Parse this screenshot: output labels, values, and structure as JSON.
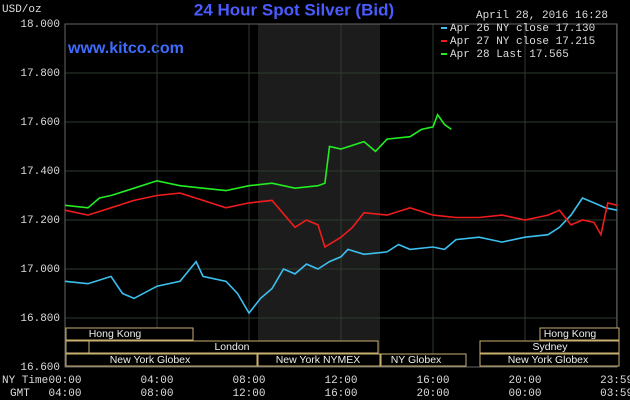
{
  "chart_data": {
    "type": "line",
    "title": "24 Hour Spot Silver (Bid)",
    "y_unit": "USD/oz",
    "timestamp": "April 28, 2016 16:28",
    "watermark": "www.kitco.com",
    "xlabel": "NY Time",
    "x2label": "GMT",
    "xlim": [
      0,
      24
    ],
    "xticks": [
      {
        "value": 0,
        "label": "00:00"
      },
      {
        "value": 4,
        "label": "04:00"
      },
      {
        "value": 8,
        "label": "08:00"
      },
      {
        "value": 12,
        "label": "12:00"
      },
      {
        "value": 16,
        "label": "16:00"
      },
      {
        "value": 20,
        "label": "20:00"
      },
      {
        "value": 23.983,
        "label": "23:59"
      }
    ],
    "x2tick_labels": [
      "04:00",
      "08:00",
      "12:00",
      "16:00",
      "20:00",
      "00:00",
      "03:59"
    ],
    "ylim": [
      16.6,
      18.0
    ],
    "yticks": [
      {
        "value": 16.6,
        "label": "16.600"
      },
      {
        "value": 16.8,
        "label": "16.800"
      },
      {
        "value": 17.0,
        "label": "17.000"
      },
      {
        "value": 17.2,
        "label": "17.200"
      },
      {
        "value": 17.4,
        "label": "17.400"
      },
      {
        "value": 17.6,
        "label": "17.600"
      },
      {
        "value": 17.8,
        "label": "17.800"
      },
      {
        "value": 18.0,
        "label": "18.000"
      }
    ],
    "grid": true,
    "sessions": [
      "Hong Kong",
      "Hong Kong",
      "London",
      "Sydney",
      "New York Globex",
      "New York NYMEX",
      "NY Globex",
      "New York Globex"
    ],
    "series": [
      {
        "name": "Apr 26 NY close 17.130",
        "color": "#3cc0f0",
        "x": [
          0,
          1,
          2,
          2.5,
          3,
          4,
          5,
          5.7,
          6,
          7,
          7.5,
          8,
          8.5,
          9,
          9.5,
          10,
          10.5,
          11,
          11.5,
          12,
          12.3,
          13,
          14,
          14.5,
          15,
          16,
          16.5,
          17,
          18,
          18.5,
          19,
          20,
          21,
          21.5,
          22,
          22.5,
          23,
          23.5,
          24
        ],
        "values": [
          16.95,
          16.94,
          16.97,
          16.9,
          16.88,
          16.93,
          16.95,
          17.03,
          16.97,
          16.95,
          16.9,
          16.82,
          16.88,
          16.92,
          17.0,
          16.98,
          17.02,
          17.0,
          17.03,
          17.05,
          17.08,
          17.06,
          17.07,
          17.1,
          17.08,
          17.09,
          17.08,
          17.12,
          17.13,
          17.12,
          17.11,
          17.13,
          17.14,
          17.17,
          17.22,
          17.29,
          17.27,
          17.25,
          17.24
        ]
      },
      {
        "name": "Apr 27 NY close 17.215",
        "color": "#ee1c1c",
        "x": [
          0,
          1,
          2,
          3,
          4,
          5,
          6,
          7,
          8,
          9,
          10,
          10.5,
          11,
          11.3,
          12,
          12.5,
          13,
          14,
          15,
          16,
          17,
          18,
          19,
          20,
          21,
          21.5,
          22,
          22.5,
          23,
          23.3,
          23.6,
          24
        ],
        "values": [
          17.24,
          17.22,
          17.25,
          17.28,
          17.3,
          17.31,
          17.28,
          17.25,
          17.27,
          17.28,
          17.17,
          17.2,
          17.18,
          17.09,
          17.13,
          17.17,
          17.23,
          17.22,
          17.25,
          17.22,
          17.21,
          17.21,
          17.22,
          17.2,
          17.22,
          17.24,
          17.18,
          17.2,
          17.19,
          17.14,
          17.27,
          17.26
        ]
      },
      {
        "name": "Apr 28 Last 17.565",
        "color": "#22ee22",
        "x": [
          0,
          1,
          1.5,
          2,
          3,
          4,
          5,
          6,
          7,
          8,
          9,
          10,
          11,
          11.3,
          11.5,
          12,
          13,
          13.5,
          14,
          15,
          15.5,
          16,
          16.2,
          16.5,
          16.8
        ],
        "values": [
          17.26,
          17.25,
          17.29,
          17.3,
          17.33,
          17.36,
          17.34,
          17.33,
          17.32,
          17.34,
          17.35,
          17.33,
          17.34,
          17.35,
          17.5,
          17.49,
          17.52,
          17.48,
          17.53,
          17.54,
          17.57,
          17.58,
          17.63,
          17.59,
          17.57
        ]
      }
    ]
  }
}
